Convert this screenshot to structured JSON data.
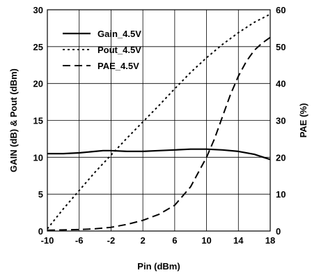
{
  "chart_data": {
    "type": "line",
    "xlabel": "Pin (dBm)",
    "ylabel_left": "GAIN (dB) & Pout (dBm)",
    "ylabel_right": "PAE (%)",
    "xlim": [
      -10,
      18
    ],
    "ylim_left": [
      0,
      30
    ],
    "ylim_right": [
      0,
      60
    ],
    "x_ticks": [
      "-10",
      "-6",
      "-2",
      "2",
      "6",
      "10",
      "14",
      "18"
    ],
    "y_ticks_left": [
      "0",
      "5",
      "10",
      "15",
      "20",
      "25",
      "30"
    ],
    "y_ticks_right": [
      "0",
      "10",
      "20",
      "30",
      "40",
      "50",
      "60"
    ],
    "grid": true,
    "legend_position": "top-left",
    "series": [
      {
        "name": "Gain_4.5V",
        "axis": "left",
        "style": "solid",
        "x": [
          -10,
          -8,
          -6,
          -4,
          -3,
          -2,
          0,
          2,
          4,
          6,
          8,
          10,
          12,
          14,
          16,
          18
        ],
        "y": [
          10.5,
          10.5,
          10.6,
          10.8,
          10.9,
          10.9,
          10.8,
          10.8,
          10.9,
          11.0,
          11.1,
          11.1,
          11.0,
          10.8,
          10.4,
          9.7
        ]
      },
      {
        "name": "Pout_4.5V",
        "axis": "left",
        "style": "dotted",
        "x": [
          -10,
          -8,
          -6,
          -4,
          -2,
          0,
          2,
          4,
          6,
          8,
          10,
          12,
          14,
          16,
          18
        ],
        "y": [
          0.3,
          3.0,
          5.5,
          8.0,
          10.3,
          12.6,
          14.8,
          17.0,
          19.3,
          21.5,
          23.5,
          25.3,
          26.9,
          28.3,
          29.4
        ]
      },
      {
        "name": "PAE_4.5V",
        "axis": "right",
        "style": "dashed",
        "x": [
          -10,
          -6,
          -4,
          -2,
          0,
          2,
          4,
          6,
          8,
          9,
          10,
          11,
          12,
          13,
          14,
          15,
          16,
          17,
          18
        ],
        "y": [
          0.2,
          0.4,
          0.6,
          1.0,
          1.8,
          2.9,
          4.5,
          7.0,
          12.0,
          16.0,
          20.0,
          25.0,
          31.0,
          37.0,
          42.0,
          46.0,
          49.0,
          51.0,
          52.5
        ]
      }
    ]
  }
}
